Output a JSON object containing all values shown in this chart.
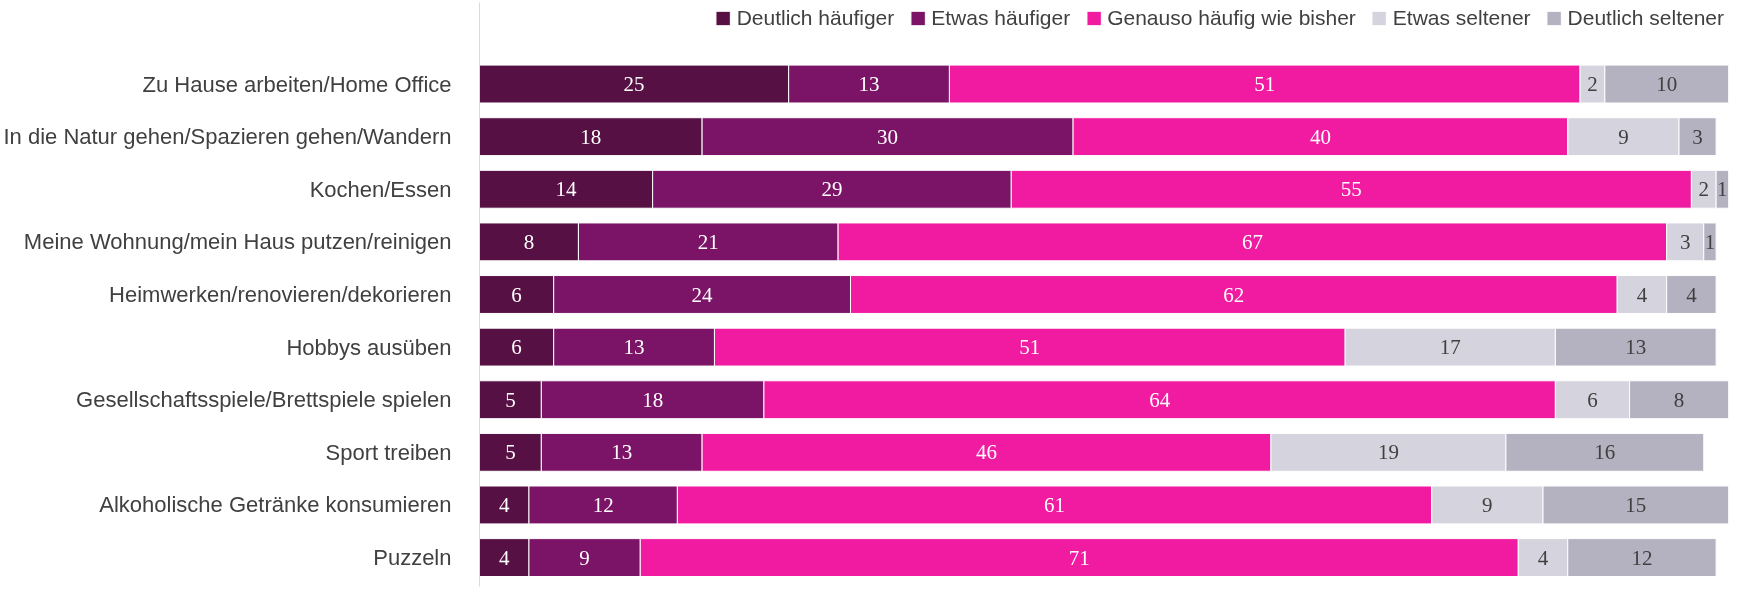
{
  "chart_data": {
    "type": "bar",
    "orientation": "horizontal",
    "stacked": true,
    "data_labels": true,
    "legend": "top",
    "grid": false,
    "tick_labels": "y",
    "xlim": [
      0,
      101
    ],
    "categories": [
      "Zu Hause arbeiten/Home Office",
      "In die Natur gehen/Spazieren gehen/Wandern",
      "Kochen/Essen",
      "Meine Wohnung/mein Haus putzen/reinigen",
      "Heimwerken/renovieren/dekorieren",
      "Hobbys ausüben",
      "Gesellschaftsspiele/Brettspiele spielen",
      "Sport treiben",
      "Alkoholische Getränke konsumieren",
      "Puzzeln"
    ],
    "series": [
      {
        "name": "Deutlich häufiger",
        "color": "#561043",
        "values": [
          25,
          18,
          14,
          8,
          6,
          6,
          5,
          5,
          4,
          4
        ]
      },
      {
        "name": "Etwas häufiger",
        "color": "#7b1466",
        "values": [
          13,
          30,
          29,
          21,
          24,
          13,
          18,
          13,
          12,
          9
        ]
      },
      {
        "name": "Genauso häufig wie bisher",
        "color": "#f01ba0",
        "values": [
          51,
          40,
          55,
          67,
          62,
          51,
          64,
          46,
          61,
          71
        ]
      },
      {
        "name": "Etwas seltener",
        "color": "#d5d3dd",
        "values": [
          2,
          9,
          2,
          3,
          4,
          17,
          6,
          19,
          9,
          4
        ]
      },
      {
        "name": "Deutlich seltener",
        "color": "#b4b1c0",
        "values": [
          10,
          3,
          1,
          1,
          4,
          13,
          8,
          16,
          15,
          12
        ]
      }
    ]
  }
}
